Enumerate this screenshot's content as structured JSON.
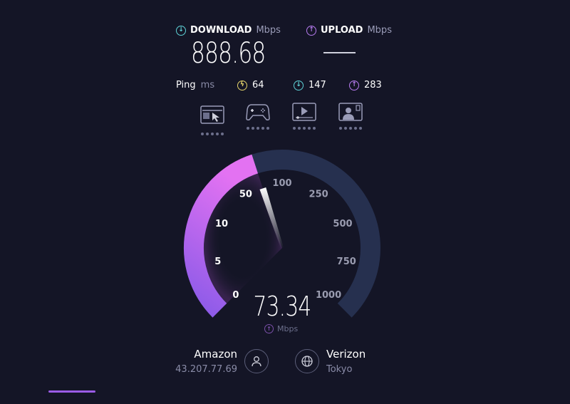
{
  "colors": {
    "background": "#141526",
    "download": "#5fd3d8",
    "upload": "#b77cf0",
    "ping": "#e5d36a",
    "gauge_track": "#26304f",
    "gauge_fill_start": "#8a5ae8",
    "gauge_fill_end": "#e372f2"
  },
  "download": {
    "label": "DOWNLOAD",
    "unit": "Mbps",
    "value": "888.68",
    "icon": "arrow-down-circle-icon"
  },
  "upload": {
    "label": "UPLOAD",
    "unit": "Mbps",
    "value": "—",
    "icon": "arrow-up-circle-icon"
  },
  "ping": {
    "label": "Ping",
    "unit": "ms",
    "idle": "64",
    "download": "147",
    "upload": "283"
  },
  "activities": [
    {
      "icon": "web-browsing-icon",
      "rating": 5
    },
    {
      "icon": "gaming-controller-icon",
      "rating": 5
    },
    {
      "icon": "video-streaming-icon",
      "rating": 5
    },
    {
      "icon": "video-call-icon",
      "rating": 5
    }
  ],
  "gauge": {
    "ticks": [
      "0",
      "5",
      "10",
      "50",
      "100",
      "250",
      "500",
      "750",
      "1000"
    ],
    "current_value": "73.34",
    "current_numeric": 73.34,
    "unit": "Mbps",
    "mode": "upload"
  },
  "provider": {
    "name": "Amazon",
    "ip": "43.207.77.69",
    "icon": "user-icon"
  },
  "server": {
    "name": "Verizon",
    "location": "Tokyo",
    "icon": "globe-icon"
  }
}
